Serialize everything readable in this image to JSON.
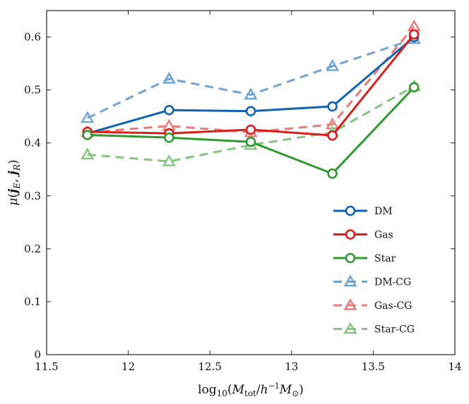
{
  "chart_data": {
    "type": "line",
    "title": "",
    "xlabel": "log10(Mtot/h^-1 M⊙)",
    "ylabel": "μ(jE, jR)",
    "xlim": [
      11.5,
      14
    ],
    "ylim": [
      0,
      0.65
    ],
    "xticks": [
      "11.5",
      "12",
      "12.5",
      "13",
      "13.5",
      "14"
    ],
    "yticks": [
      "0",
      "0.1",
      "0.2",
      "0.3",
      "0.4",
      "0.5",
      "0.6"
    ],
    "x": [
      11.75,
      12.25,
      12.75,
      13.25,
      13.75
    ],
    "legend_position": "bottom-right",
    "grid": false,
    "series": [
      {
        "name": "DM",
        "values": [
          0.418,
          0.462,
          0.46,
          0.469,
          0.6
        ],
        "color": "#0f62b5",
        "dashed": false,
        "marker": "circle"
      },
      {
        "name": "Gas",
        "values": [
          0.421,
          0.418,
          0.425,
          0.414,
          0.605
        ],
        "color": "#dd1c1c",
        "dashed": false,
        "marker": "circle"
      },
      {
        "name": "Star",
        "values": [
          0.415,
          0.41,
          0.402,
          0.342,
          0.505
        ],
        "color": "#2f9a2f",
        "dashed": false,
        "marker": "circle"
      },
      {
        "name": "DM-CG",
        "values": [
          0.447,
          0.521,
          0.491,
          0.545,
          0.596
        ],
        "color": "#6ea4d8",
        "dashed": true,
        "marker": "triangle"
      },
      {
        "name": "Gas-CG",
        "values": [
          0.42,
          0.432,
          0.42,
          0.435,
          0.62
        ],
        "color": "#ec7a7a",
        "dashed": true,
        "marker": "triangle"
      },
      {
        "name": "Star-CG",
        "values": [
          0.378,
          0.365,
          0.396,
          0.42,
          0.507
        ],
        "color": "#82c77e",
        "dashed": true,
        "marker": "triangle"
      }
    ]
  }
}
